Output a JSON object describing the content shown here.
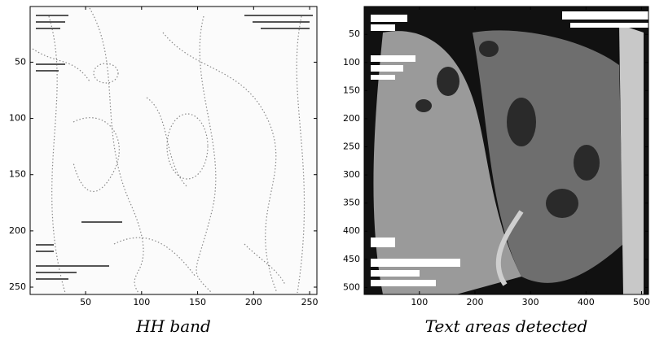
{
  "chart_data": [
    {
      "type": "image",
      "caption": "HH band",
      "xlim": [
        0.5,
        256.5
      ],
      "ylim": [
        0.5,
        256.5
      ],
      "xticks": [
        50,
        100,
        150,
        200,
        250
      ],
      "yticks": [
        50,
        100,
        150,
        200,
        250
      ]
    },
    {
      "type": "image",
      "caption": "Text areas detected",
      "xlim": [
        0.5,
        512.5
      ],
      "ylim": [
        0.5,
        512.5
      ],
      "xticks": [
        100,
        200,
        300,
        400,
        500
      ],
      "yticks": [
        50,
        100,
        150,
        200,
        250,
        300,
        350,
        400,
        450,
        500
      ]
    }
  ]
}
